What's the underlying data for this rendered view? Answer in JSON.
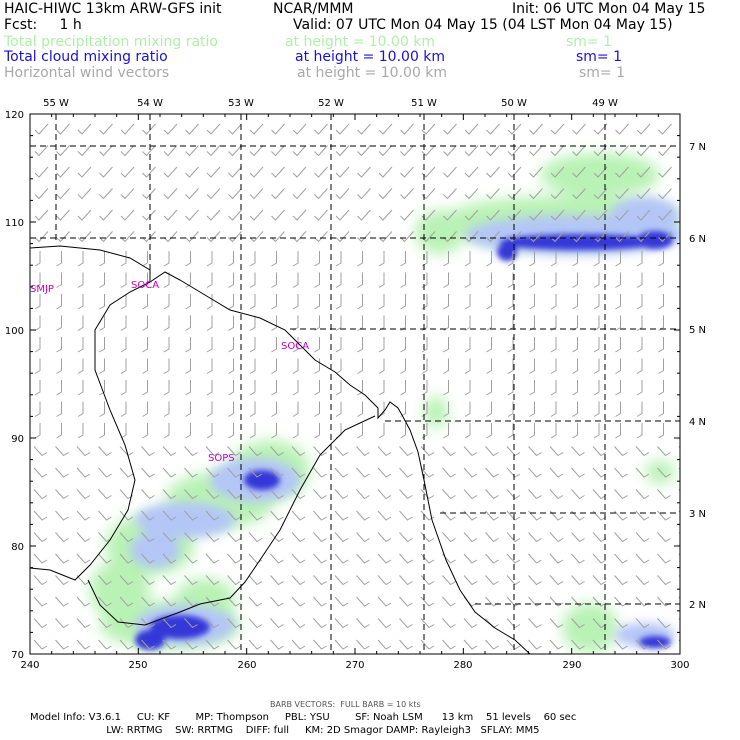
{
  "header": {
    "model": "HAIC-HIWC 13km ARW-GFS init",
    "org": "NCAR/MMM",
    "init": "Init: 06 UTC Mon 04 May 15",
    "fcst": "Fcst:     1 h",
    "valid": "Valid: 07 UTC Mon 04 May 15 (04 LST Mon 04 May 15)"
  },
  "fields": [
    {
      "name": "Total precipitation mixing ratio",
      "height": "at height = 10.00 km",
      "sm": "sm= 1",
      "color": "#aef0a8"
    },
    {
      "name": "Total cloud mixing ratio",
      "height": "at height = 10.00 km",
      "sm": "sm= 1",
      "color": "#1a10d8"
    },
    {
      "name": "Horizontal wind vectors",
      "height": "at height = 10.00 km",
      "sm": "sm= 1",
      "color": "#a8a8a8"
    }
  ],
  "map": {
    "x_ticks": [
      "240",
      "250",
      "260",
      "270",
      "280",
      "290",
      "300"
    ],
    "y_ticks": [
      "70",
      "80",
      "90",
      "100",
      "110",
      "120"
    ],
    "lon_labels": [
      "55 W",
      "54 W",
      "53 W",
      "52 W",
      "51 W",
      "50 W",
      "49 W"
    ],
    "lat_labels": [
      "7 N",
      "6 N",
      "5 N",
      "4 N",
      "3 N",
      "2 N"
    ],
    "stations": [
      "SMJP",
      "SOCA",
      "SOCA",
      "SOPS"
    ]
  },
  "footer": {
    "barb": "BARB VECTORS:  FULL BARB = 10 kts",
    "line1": "Model Info: V3.6.1     CU: KF        MP: Thompson     PBL: YSU        SF: Noah LSM      13 km    51 levels    60 sec",
    "line2": "                        LW: RRTMG    SW: RRTMG    DIFF: full     KM: 2D Smagor DAMP: Rayleigh3   SFLAY: MM5"
  }
}
